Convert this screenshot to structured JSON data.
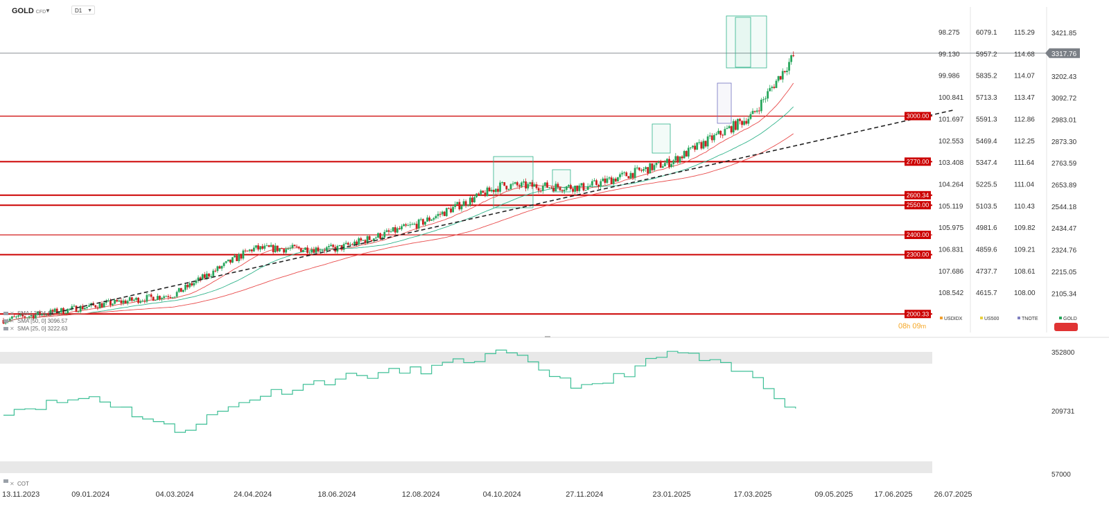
{
  "toolbar": {
    "symbol": "GOLD",
    "symbol_tag": "CFD",
    "timeframe": "D1",
    "dropdown_icon": "chevron-down-icon"
  },
  "countdown": {
    "hours": "08",
    "h": "h",
    "minutes": "09",
    "m": "m",
    "color": "#f5a623"
  },
  "cot_label": "COT",
  "colors": {
    "candle_up": "#26a65b",
    "candle_down": "#cc1f1f",
    "sma_red": "#e84a4a",
    "sma_green": "#2fb38a",
    "trendline": "#222222",
    "level": "#cc0000",
    "price_badge": "#7a7f86",
    "cot_line": "#3dbf96"
  },
  "chart_data": [
    {
      "type": "line",
      "title": "GOLD CFD D1",
      "price_current": "3317.76",
      "price_ticks": [
        "3421.85",
        "3317.76",
        "3202.43",
        "3092.72",
        "2983.01",
        "2873.30",
        "2763.59",
        "2653.89",
        "2544.18",
        "2434.47",
        "2324.76",
        "2215.05",
        "2105.34"
      ],
      "comparison_axes": [
        {
          "name": "USDIDX",
          "color": "#f0a030",
          "ticks": [
            "98.275",
            "99.130",
            "99.986",
            "100.841",
            "101.697",
            "102.553",
            "103.408",
            "104.264",
            "105.119",
            "105.975",
            "106.831",
            "107.686",
            "108.542"
          ]
        },
        {
          "name": "US500",
          "color": "#e8d040",
          "ticks": [
            "6079.1",
            "5957.2",
            "5835.2",
            "5713.3",
            "5591.3",
            "5469.4",
            "5347.4",
            "5225.5",
            "5103.5",
            "4981.6",
            "4859.6",
            "4737.7",
            "4615.7"
          ]
        },
        {
          "name": "TNOTE",
          "color": "#8080c0",
          "ticks": [
            "115.29",
            "114.68",
            "114.07",
            "113.47",
            "112.86",
            "112.25",
            "111.64",
            "111.04",
            "110.43",
            "109.82",
            "109.21",
            "108.61",
            "108.00"
          ]
        },
        {
          "name": "GOLD",
          "color": "#26a65b",
          "ticks": []
        }
      ],
      "levels": [
        "3000.00",
        "2770.00",
        "2600.34",
        "2550.00",
        "2400.00",
        "2300.00",
        "2000.33"
      ],
      "indicators": [
        {
          "name": "SMA [",
          "value": "3324.16"
        },
        {
          "name": "SMA [50, 0]",
          "value": "3096.57"
        },
        {
          "name": "SMA [25, 0]",
          "value": "3222.63"
        }
      ],
      "x_ticks": [
        "13.11.2023",
        "09.01.2024",
        "04.03.2024",
        "24.04.2024",
        "18.06.2024",
        "12.08.2024",
        "04.10.2024",
        "27.11.2024",
        "23.01.2025",
        "17.03.2025",
        "09.05.2025",
        "17.06.2025",
        "26.07.2025"
      ],
      "series": [
        {
          "x": [
            "13.11.2023",
            "09.01.2024",
            "04.03.2024",
            "24.04.2024",
            "18.06.2024",
            "12.08.2024",
            "04.10.2024",
            "27.11.2024",
            "23.01.2025",
            "17.03.2025",
            "14.04.2025"
          ],
          "values": [
            1970,
            2040,
            2100,
            2330,
            2330,
            2460,
            2650,
            2640,
            2770,
            3005,
            3317.76
          ]
        }
      ],
      "trendline": {
        "from": [
          "13.12.2023",
          2000.33
        ],
        "to": [
          "26.07.2025",
          3030
        ]
      }
    },
    {
      "type": "line",
      "title": "COT",
      "y_ticks": [
        "352800",
        "209731",
        "57000"
      ],
      "series": [
        {
          "x": [
            "13.11.2023",
            "09.01.2024",
            "04.03.2024",
            "24.04.2024",
            "18.06.2024",
            "12.08.2024",
            "04.10.2024",
            "27.11.2024",
            "23.01.2025",
            "17.03.2025",
            "14.04.2025"
          ],
          "values": [
            210000,
            245000,
            160000,
            245000,
            290000,
            310000,
            350000,
            260000,
            355000,
            290000,
            208000
          ]
        }
      ]
    }
  ]
}
